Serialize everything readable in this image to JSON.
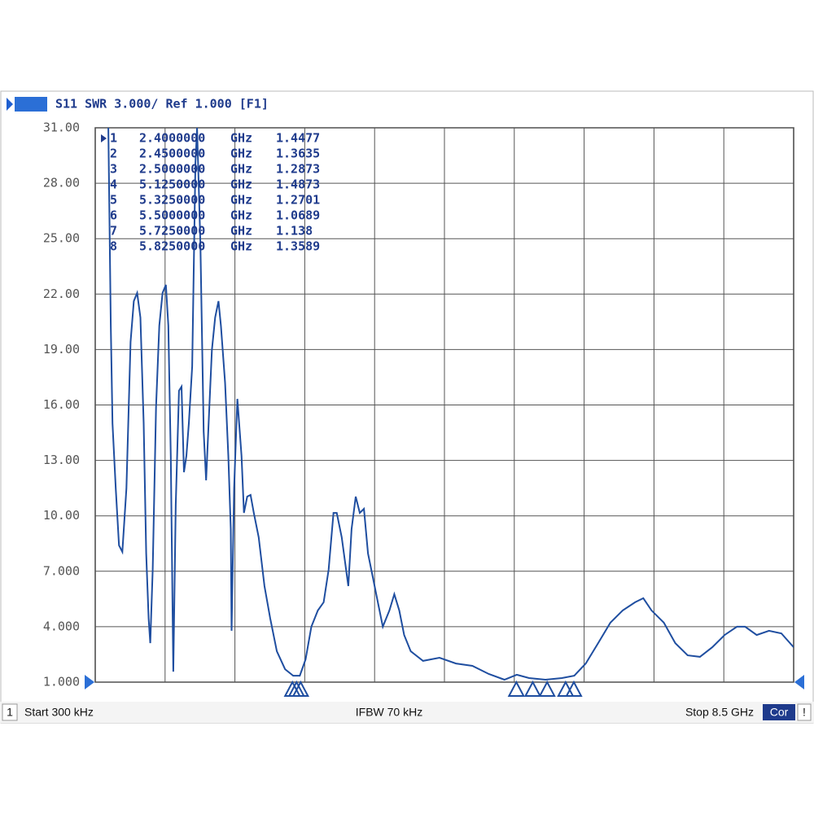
{
  "chart_data": {
    "type": "line",
    "title": "S11  SWR 3.000/ Ref 1.000 [F1]",
    "xlim": [
      0.0003,
      8.5
    ],
    "ylim": [
      1,
      31
    ],
    "yticks": [
      {
        "value": 1,
        "label": "1.000"
      },
      {
        "value": 4,
        "label": "4.000"
      },
      {
        "value": 7,
        "label": "7.000"
      },
      {
        "value": 10,
        "label": "10.00"
      },
      {
        "value": 13,
        "label": "13.00"
      },
      {
        "value": 16,
        "label": "16.00"
      },
      {
        "value": 19,
        "label": "19.00"
      },
      {
        "value": 22,
        "label": "22.00"
      },
      {
        "value": 25,
        "label": "25.00"
      },
      {
        "value": 28,
        "label": "28.00"
      },
      {
        "value": 31,
        "label": "31.00"
      }
    ],
    "grid": true,
    "series": [
      {
        "name": "S11",
        "color": "#1f4ea0",
        "x": [
          0.16,
          0.19,
          0.21,
          0.25,
          0.29,
          0.33,
          0.38,
          0.43,
          0.47,
          0.51,
          0.55,
          0.59,
          0.62,
          0.65,
          0.67,
          0.7,
          0.74,
          0.78,
          0.82,
          0.86,
          0.89,
          0.92,
          0.95,
          0.98,
          1.02,
          1.05,
          1.08,
          1.11,
          1.14,
          1.18,
          1.22,
          1.24,
          1.28,
          1.32,
          1.35,
          1.38,
          1.42,
          1.46,
          1.5,
          1.53,
          1.58,
          1.62,
          1.65,
          1.66,
          1.69,
          1.73,
          1.78,
          1.81,
          1.85,
          1.89,
          1.93,
          1.99,
          2.06,
          2.13,
          2.21,
          2.31,
          2.41,
          2.49,
          2.56,
          2.63,
          2.71,
          2.78,
          2.84,
          2.9,
          2.94,
          3.0,
          3.08,
          3.12,
          3.17,
          3.22,
          3.27,
          3.32,
          3.38,
          3.44,
          3.5,
          3.58,
          3.64,
          3.7,
          3.76,
          3.84,
          3.99,
          4.19,
          4.39,
          4.59,
          4.79,
          4.98,
          5.13,
          5.28,
          5.48,
          5.68,
          5.83,
          5.97,
          6.12,
          6.27,
          6.42,
          6.57,
          6.67,
          6.77,
          6.92,
          7.06,
          7.21,
          7.36,
          7.51,
          7.66,
          7.81,
          7.91,
          8.05,
          8.2,
          8.35,
          8.5
        ],
        "values": [
          31.0,
          20.29,
          15.01,
          11.48,
          8.4,
          8.05,
          11.48,
          19.41,
          21.62,
          22.06,
          20.73,
          15.01,
          7.96,
          4.44,
          3.11,
          7.08,
          15.89,
          20.29,
          22.06,
          22.5,
          20.29,
          13.25,
          1.57,
          10.6,
          16.77,
          16.99,
          12.36,
          13.25,
          15.01,
          18.09,
          29.1,
          31.0,
          24.7,
          14.57,
          11.92,
          15.01,
          18.97,
          20.73,
          21.62,
          20.29,
          17.21,
          13.25,
          9.28,
          3.78,
          11.48,
          16.33,
          13.25,
          10.16,
          11.04,
          11.13,
          10.16,
          8.84,
          6.2,
          4.44,
          2.67,
          1.7,
          1.35,
          1.35,
          2.23,
          4.0,
          4.88,
          5.32,
          7.08,
          10.16,
          10.16,
          8.84,
          6.2,
          9.28,
          11.04,
          10.16,
          10.38,
          7.96,
          6.64,
          5.32,
          4.0,
          4.88,
          5.76,
          4.88,
          3.55,
          2.67,
          2.15,
          2.32,
          2.01,
          1.88,
          1.44,
          1.13,
          1.4,
          1.22,
          1.13,
          1.22,
          1.35,
          2.01,
          3.11,
          4.22,
          4.88,
          5.32,
          5.54,
          4.88,
          4.22,
          3.11,
          2.45,
          2.37,
          2.89,
          3.55,
          4.0,
          4.0,
          3.55,
          3.78,
          3.64,
          2.89
        ]
      }
    ],
    "markers": [
      {
        "number": "1",
        "freq": {
          "value": 2.4,
          "label": "2.4000000"
        },
        "unit": "GHz",
        "value": 1.4477
      },
      {
        "number": "2",
        "freq": {
          "value": 2.45,
          "label": "2.4500000"
        },
        "unit": "GHz",
        "value": 1.3635
      },
      {
        "number": "3",
        "freq": {
          "value": 2.5,
          "label": "2.5000000"
        },
        "unit": "GHz",
        "value": 1.2873
      },
      {
        "number": "4",
        "freq": {
          "value": 5.125,
          "label": "5.1250000"
        },
        "unit": "GHz",
        "value": 1.4873
      },
      {
        "number": "5",
        "freq": {
          "value": 5.325,
          "label": "5.3250000"
        },
        "unit": "GHz",
        "value": 1.2701
      },
      {
        "number": "6",
        "freq": {
          "value": 5.5,
          "label": "5.5000000"
        },
        "unit": "GHz",
        "value": 1.0689
      },
      {
        "number": "7",
        "freq": {
          "value": 5.725,
          "label": "5.7250000"
        },
        "unit": "GHz",
        "value": 1.138
      },
      {
        "number": "8",
        "freq": {
          "value": 5.825,
          "label": "5.8250000"
        },
        "unit": "GHz",
        "value": 1.3589
      }
    ],
    "footer": {
      "channel": "1",
      "start": "Start 300 kHz",
      "ifbw": "IFBW 70 kHz",
      "stop": "Stop 8.5 GHz",
      "cor": "Cor",
      "alert": "!"
    }
  }
}
